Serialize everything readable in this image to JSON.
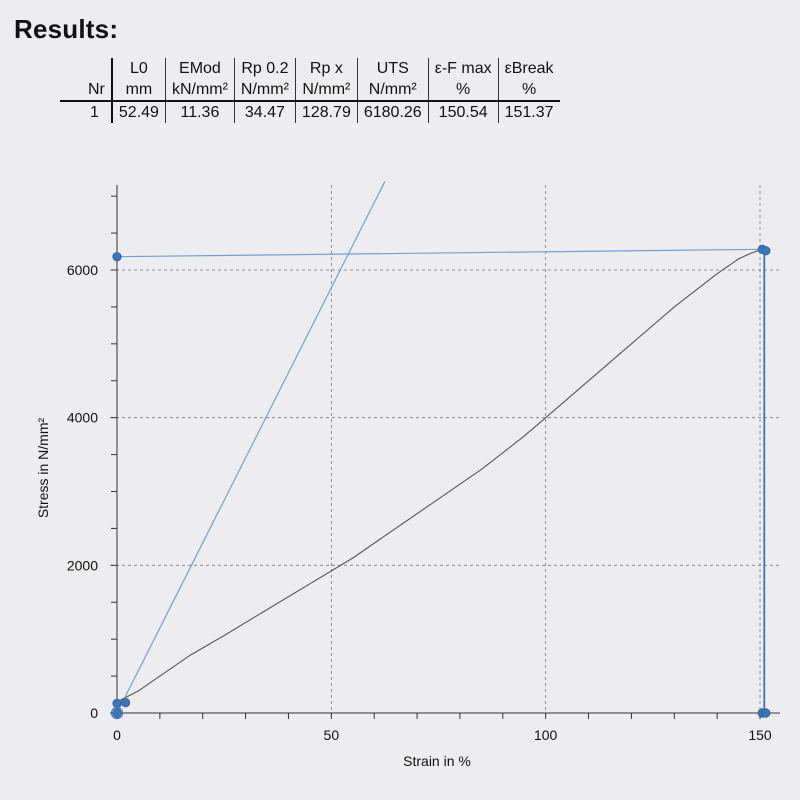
{
  "heading": "Results:",
  "table": {
    "nr_header": "Nr",
    "columns": [
      {
        "name": "L0",
        "unit": "mm"
      },
      {
        "name": "EMod",
        "unit": "kN/mm²"
      },
      {
        "name": "Rp 0.2",
        "unit": "N/mm²"
      },
      {
        "name": "Rp x",
        "unit": "N/mm²"
      },
      {
        "name": "UTS",
        "unit": "N/mm²"
      },
      {
        "name": "ε-F max",
        "unit": "%"
      },
      {
        "name": "εBreak",
        "unit": "%"
      }
    ],
    "rows": [
      {
        "nr": "1",
        "values": [
          "52.49",
          "11.36",
          "34.47",
          "128.79",
          "6180.26",
          "150.54",
          "151.37"
        ]
      }
    ]
  },
  "chart_data": {
    "type": "line",
    "xlabel": "Strain in %",
    "ylabel": "Stress in N/mm²",
    "xlim": [
      0,
      155
    ],
    "ylim": [
      0,
      7000
    ],
    "x_ticks": [
      "0",
      "50",
      "100",
      "150"
    ],
    "y_ticks": [
      "0",
      "2000",
      "4000",
      "6000"
    ],
    "grid": true,
    "colors": {
      "curve": "#555555",
      "fit": "#6fa0cf",
      "marker": "#3f74b6",
      "grid": "#777777"
    },
    "series": [
      {
        "role": "stress-strain-curve",
        "x": [
          0,
          5,
          10,
          17,
          25,
          35,
          45,
          55,
          65,
          75,
          85,
          95,
          100,
          110,
          120,
          130,
          140,
          145,
          148,
          150.54,
          151.37
        ],
        "y": [
          150,
          300,
          500,
          780,
          1050,
          1400,
          1750,
          2100,
          2500,
          2900,
          3300,
          3750,
          4000,
          4500,
          5000,
          5500,
          5950,
          6150,
          6230,
          6280,
          6260
        ]
      },
      {
        "role": "modulus-line",
        "x": [
          0,
          62.5
        ],
        "y": [
          0,
          7200
        ]
      },
      {
        "role": "uts-line",
        "x": [
          0,
          150.54
        ],
        "y": [
          6180,
          6280
        ]
      },
      {
        "role": "break-drop",
        "x": [
          151.0,
          151.0
        ],
        "y": [
          6260,
          0
        ]
      }
    ],
    "markers": [
      {
        "x": 0,
        "y": 6180
      },
      {
        "x": 150.54,
        "y": 6280
      },
      {
        "x": 151.37,
        "y": 6260
      },
      {
        "x": 0,
        "y": 130
      },
      {
        "x": 2,
        "y": 140
      },
      {
        "x": 0,
        "y": 0
      },
      {
        "x": 150.5,
        "y": 0
      },
      {
        "x": 151.37,
        "y": 0
      }
    ]
  }
}
